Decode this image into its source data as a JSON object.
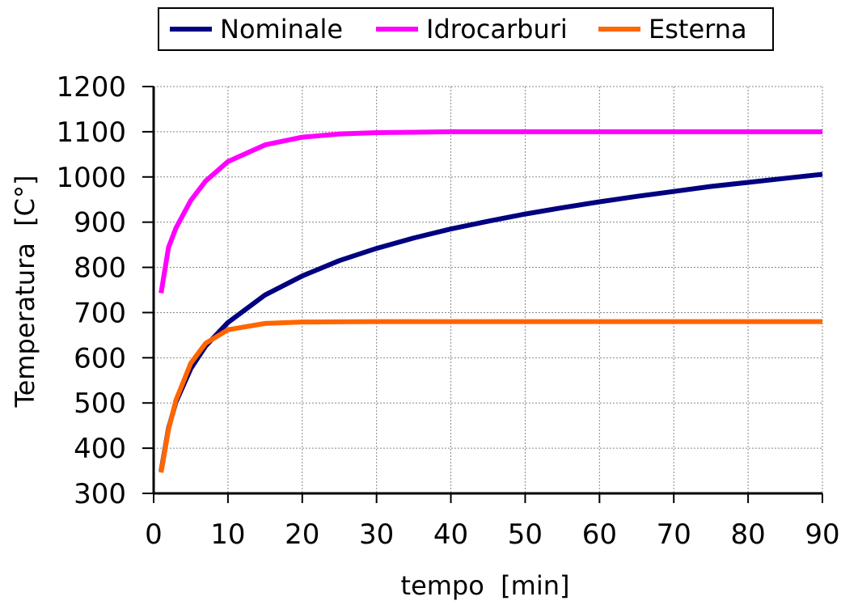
{
  "chart_data": {
    "type": "line",
    "title": "",
    "xlabel": "tempo  [min]",
    "ylabel": "Temperatura  [C°]",
    "xlim": [
      0,
      90
    ],
    "ylim": [
      300,
      1200
    ],
    "xticks": [
      0,
      10,
      20,
      30,
      40,
      50,
      60,
      70,
      80,
      90
    ],
    "yticks": [
      300,
      400,
      500,
      600,
      700,
      800,
      900,
      1000,
      1100,
      1200
    ],
    "grid": true,
    "legend_placement": "top-center",
    "series": [
      {
        "name": "Nominale",
        "color": "#000080",
        "x": [
          1,
          2,
          3,
          5,
          7,
          10,
          15,
          20,
          25,
          30,
          35,
          40,
          45,
          50,
          55,
          60,
          65,
          70,
          75,
          80,
          85,
          90
        ],
        "y": [
          349,
          444,
          502,
          576,
          626,
          678,
          739,
          781,
          815,
          842,
          865,
          885,
          902,
          918,
          932,
          945,
          957,
          968,
          979,
          988,
          997,
          1006
        ]
      },
      {
        "name": "Idrocarburi",
        "color": "#ff00ff",
        "x": [
          1,
          2,
          3,
          5,
          7,
          10,
          15,
          20,
          25,
          30,
          35,
          40,
          50,
          60,
          70,
          80,
          90
        ],
        "y": [
          743,
          844,
          887,
          948,
          991,
          1034,
          1071,
          1088,
          1095,
          1098,
          1099,
          1100,
          1100,
          1100,
          1100,
          1100,
          1100
        ]
      },
      {
        "name": "Esterna",
        "color": "#ff6600",
        "x": [
          1,
          2,
          3,
          5,
          7,
          10,
          15,
          20,
          30,
          40,
          50,
          60,
          70,
          80,
          90
        ],
        "y": [
          346,
          441,
          506,
          588,
          632,
          662,
          676,
          679,
          680,
          680,
          680,
          680,
          680,
          680,
          680
        ]
      }
    ]
  }
}
